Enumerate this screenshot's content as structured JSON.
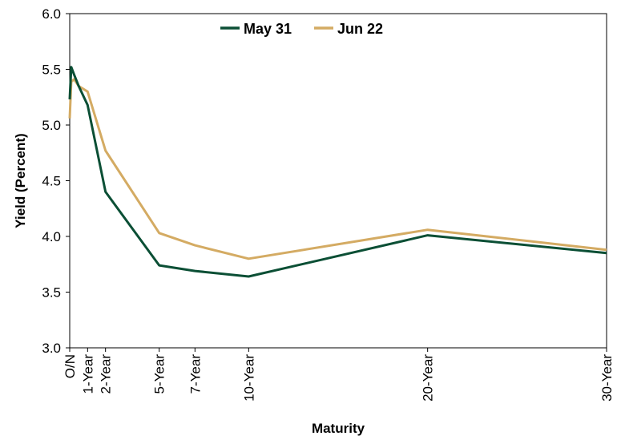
{
  "chart_data": {
    "type": "line",
    "xlabel": "Maturity",
    "ylabel": "Yield (Percent)",
    "ylim": [
      3.0,
      6.0
    ],
    "yticks": [
      "3.0",
      "3.5",
      "4.0",
      "4.5",
      "5.0",
      "5.5",
      "6.0"
    ],
    "x_tick_labels": [
      {
        "label": "O/N",
        "years": 0
      },
      {
        "label": "1-Year",
        "years": 1
      },
      {
        "label": "2-Year",
        "years": 2
      },
      {
        "label": "5-Year",
        "years": 5
      },
      {
        "label": "7-Year",
        "years": 7
      },
      {
        "label": "10-Year",
        "years": 10
      },
      {
        "label": "20-Year",
        "years": 20
      },
      {
        "label": "30-Year",
        "years": 30
      }
    ],
    "x_years": [
      0,
      0.083,
      0.25,
      0.5,
      1,
      2,
      5,
      7,
      10,
      20,
      30
    ],
    "series": [
      {
        "name": "May 31",
        "color": "#0b4f35",
        "values": [
          5.23,
          5.52,
          5.45,
          5.35,
          5.18,
          4.4,
          3.74,
          3.69,
          3.64,
          4.01,
          3.85
        ]
      },
      {
        "name": "Jun 22",
        "color": "#d4ab63",
        "values": [
          5.06,
          5.39,
          5.41,
          5.35,
          5.3,
          4.77,
          4.03,
          3.92,
          3.8,
          4.06,
          3.88
        ]
      }
    ],
    "grid": false,
    "legend": "top-center"
  }
}
